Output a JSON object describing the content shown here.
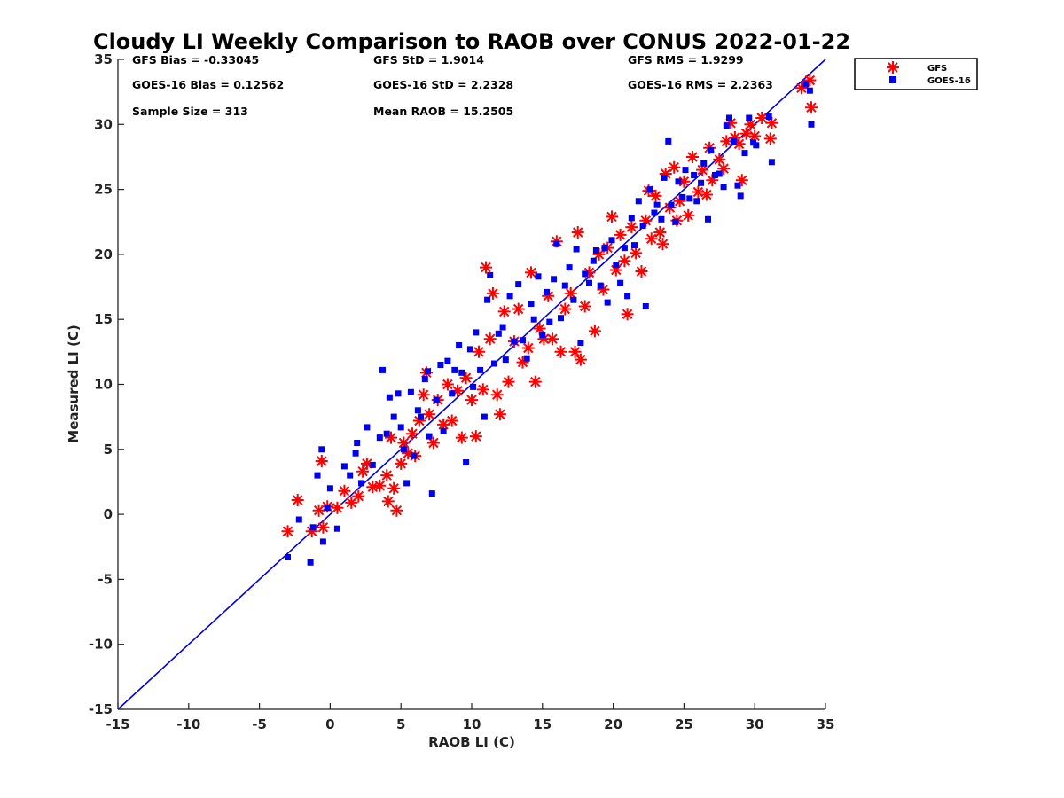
{
  "chart_data": {
    "type": "scatter",
    "title": "Cloudy LI Weekly Comparison to RAOB over CONUS 2022-01-22",
    "xlabel": "RAOB LI (C)",
    "ylabel": "Measured LI (C)",
    "xlim": [
      -15,
      35
    ],
    "ylim": [
      -15,
      35
    ],
    "xticks": [
      "-15",
      "-10",
      "-5",
      "0",
      "5",
      "10",
      "15",
      "20",
      "25",
      "30",
      "35"
    ],
    "yticks": [
      "-15",
      "-10",
      "-5",
      "0",
      "5",
      "10",
      "15",
      "20",
      "25",
      "30",
      "35"
    ],
    "grid": false,
    "legend_position": "outside-top-right",
    "reference_line": {
      "x": [
        -15,
        35
      ],
      "y": [
        -15,
        35
      ],
      "color": "#0000dd"
    },
    "stats": [
      [
        "GFS Bias = -0.33045",
        "GFS StD = 1.9014",
        "GFS RMS = 1.9299"
      ],
      [
        "GOES-16 Bias = 0.12562",
        "GOES-16 StD = 2.2328",
        "GOES-16 RMS = 2.2363"
      ],
      [
        "Sample Size = 313",
        "Mean RAOB = 15.2505"
      ]
    ],
    "series": [
      {
        "name": "GFS",
        "marker": "asterisk",
        "color": "#ff0000",
        "points": [
          [
            -3,
            -1.3
          ],
          [
            -2.3,
            1.1
          ],
          [
            -1.3,
            -1.3
          ],
          [
            -0.8,
            0.3
          ],
          [
            -0.6,
            4.1
          ],
          [
            -0.5,
            -1
          ],
          [
            -0.2,
            0.6
          ],
          [
            0.5,
            0.5
          ],
          [
            1,
            1.8
          ],
          [
            1.5,
            0.9
          ],
          [
            2,
            1.4
          ],
          [
            2.3,
            3.3
          ],
          [
            2.6,
            3.9
          ],
          [
            3,
            2.1
          ],
          [
            3.5,
            2.2
          ],
          [
            4,
            3
          ],
          [
            4.1,
            1
          ],
          [
            4.3,
            5.9
          ],
          [
            4.5,
            2
          ],
          [
            4.7,
            0.3
          ],
          [
            5,
            3.9
          ],
          [
            5.2,
            5.5
          ],
          [
            5.5,
            4.7
          ],
          [
            5.8,
            6.2
          ],
          [
            6,
            4.5
          ],
          [
            6.3,
            7.2
          ],
          [
            6.6,
            9.2
          ],
          [
            6.8,
            10.9
          ],
          [
            7,
            7.7
          ],
          [
            7.3,
            5.5
          ],
          [
            7.6,
            8.8
          ],
          [
            8,
            6.9
          ],
          [
            8.3,
            10
          ],
          [
            8.6,
            7.2
          ],
          [
            9,
            9.5
          ],
          [
            9.3,
            5.9
          ],
          [
            9.6,
            10.5
          ],
          [
            10,
            8.8
          ],
          [
            10.3,
            6
          ],
          [
            10.5,
            12.5
          ],
          [
            10.8,
            9.6
          ],
          [
            11,
            19
          ],
          [
            11.3,
            13.5
          ],
          [
            11.5,
            17
          ],
          [
            11.8,
            9.2
          ],
          [
            12,
            7.7
          ],
          [
            12.3,
            15.6
          ],
          [
            12.6,
            10.2
          ],
          [
            13,
            13.3
          ],
          [
            13.3,
            15.8
          ],
          [
            13.6,
            11.7
          ],
          [
            14,
            12.8
          ],
          [
            14.2,
            18.6
          ],
          [
            14.5,
            10.2
          ],
          [
            14.8,
            14.3
          ],
          [
            15.1,
            13.5
          ],
          [
            15.4,
            16.8
          ],
          [
            15.7,
            13.5
          ],
          [
            16,
            21
          ],
          [
            16.3,
            12.5
          ],
          [
            16.6,
            15.8
          ],
          [
            17,
            17
          ],
          [
            17.3,
            12.5
          ],
          [
            17.5,
            21.7
          ],
          [
            17.7,
            11.9
          ],
          [
            18,
            16
          ],
          [
            18.3,
            18.6
          ],
          [
            18.7,
            14.1
          ],
          [
            19,
            20
          ],
          [
            19.3,
            17.3
          ],
          [
            19.6,
            20.5
          ],
          [
            19.9,
            22.9
          ],
          [
            20.2,
            18.8
          ],
          [
            20.5,
            21.5
          ],
          [
            20.8,
            19.5
          ],
          [
            21,
            15.4
          ],
          [
            21.3,
            22.1
          ],
          [
            21.6,
            20.1
          ],
          [
            22,
            18.7
          ],
          [
            22.3,
            22.6
          ],
          [
            22.5,
            24.9
          ],
          [
            22.7,
            21.2
          ],
          [
            23,
            24.5
          ],
          [
            23.3,
            21.7
          ],
          [
            23.5,
            20.8
          ],
          [
            23.7,
            26.2
          ],
          [
            24,
            23.6
          ],
          [
            24.3,
            26.7
          ],
          [
            24.5,
            22.6
          ],
          [
            24.7,
            24.1
          ],
          [
            25,
            25.6
          ],
          [
            25.3,
            23
          ],
          [
            25.6,
            27.5
          ],
          [
            26,
            24.8
          ],
          [
            26.3,
            26.5
          ],
          [
            26.6,
            24.6
          ],
          [
            26.8,
            28.2
          ],
          [
            27,
            25.7
          ],
          [
            27.5,
            27.3
          ],
          [
            27.8,
            26.6
          ],
          [
            28,
            28.7
          ],
          [
            28.3,
            30.1
          ],
          [
            28.6,
            29
          ],
          [
            28.9,
            28.5
          ],
          [
            29.1,
            25.7
          ],
          [
            29.4,
            29.3
          ],
          [
            29.7,
            30
          ],
          [
            30,
            29.1
          ],
          [
            30.5,
            30.5
          ],
          [
            31.1,
            28.9
          ],
          [
            31.2,
            30.1
          ],
          [
            33.3,
            32.8
          ],
          [
            33.9,
            33.4
          ],
          [
            34,
            31.3
          ]
        ]
      },
      {
        "name": "GOES-16",
        "marker": "square",
        "color": "#0000ee",
        "points": [
          [
            -3,
            -3.3
          ],
          [
            -2.2,
            -0.4
          ],
          [
            -1.4,
            -3.7
          ],
          [
            -1.2,
            -1
          ],
          [
            -0.9,
            3
          ],
          [
            -0.6,
            5
          ],
          [
            -0.5,
            -2.1
          ],
          [
            -0.2,
            0.5
          ],
          [
            0,
            2
          ],
          [
            0.5,
            -1.1
          ],
          [
            1,
            3.7
          ],
          [
            1.4,
            3
          ],
          [
            1.8,
            4.7
          ],
          [
            1.9,
            5.5
          ],
          [
            2.2,
            2.4
          ],
          [
            2.6,
            6.7
          ],
          [
            3,
            3.8
          ],
          [
            3.5,
            5.9
          ],
          [
            3.7,
            11.1
          ],
          [
            4,
            6.2
          ],
          [
            4.2,
            9
          ],
          [
            4.5,
            7.5
          ],
          [
            4.8,
            9.3
          ],
          [
            5,
            6.7
          ],
          [
            5.2,
            5
          ],
          [
            5.4,
            2.4
          ],
          [
            5.7,
            9.4
          ],
          [
            5.9,
            4.5
          ],
          [
            6.2,
            8
          ],
          [
            6.4,
            7.5
          ],
          [
            6.7,
            10.4
          ],
          [
            6.9,
            11
          ],
          [
            7,
            6
          ],
          [
            7.2,
            1.6
          ],
          [
            7.5,
            8.8
          ],
          [
            7.8,
            11.5
          ],
          [
            8,
            6.4
          ],
          [
            8.3,
            11.8
          ],
          [
            8.6,
            9.3
          ],
          [
            8.8,
            11.1
          ],
          [
            9.1,
            13
          ],
          [
            9.3,
            10.9
          ],
          [
            9.6,
            4
          ],
          [
            9.9,
            12.7
          ],
          [
            10.1,
            9.8
          ],
          [
            10.3,
            14
          ],
          [
            10.6,
            11.1
          ],
          [
            10.9,
            7.5
          ],
          [
            11.1,
            16.5
          ],
          [
            11.3,
            18.4
          ],
          [
            11.6,
            11.6
          ],
          [
            11.9,
            13.9
          ],
          [
            12.2,
            14.4
          ],
          [
            12.4,
            11.9
          ],
          [
            12.7,
            16.8
          ],
          [
            13,
            13.3
          ],
          [
            13.3,
            17.7
          ],
          [
            13.6,
            13.4
          ],
          [
            13.9,
            12
          ],
          [
            14.2,
            16.2
          ],
          [
            14.4,
            15
          ],
          [
            14.7,
            18.3
          ],
          [
            15,
            13.8
          ],
          [
            15.3,
            17.1
          ],
          [
            15.5,
            14.8
          ],
          [
            15.8,
            18.1
          ],
          [
            16,
            20.8
          ],
          [
            16.3,
            15.1
          ],
          [
            16.6,
            17.6
          ],
          [
            16.9,
            19
          ],
          [
            17.2,
            16.5
          ],
          [
            17.4,
            20.4
          ],
          [
            17.7,
            13.2
          ],
          [
            18,
            18.5
          ],
          [
            18.3,
            17.8
          ],
          [
            18.6,
            19.5
          ],
          [
            18.8,
            20.3
          ],
          [
            19.1,
            17.6
          ],
          [
            19.4,
            20.5
          ],
          [
            19.6,
            16.3
          ],
          [
            19.9,
            21.1
          ],
          [
            20.2,
            19.2
          ],
          [
            20.5,
            17.8
          ],
          [
            20.8,
            20.5
          ],
          [
            21,
            16.8
          ],
          [
            21.3,
            22.8
          ],
          [
            21.5,
            20.7
          ],
          [
            21.8,
            24.1
          ],
          [
            22.1,
            22.2
          ],
          [
            22.3,
            16
          ],
          [
            22.6,
            25
          ],
          [
            22.9,
            23.2
          ],
          [
            23.1,
            23.8
          ],
          [
            23.4,
            22.7
          ],
          [
            23.6,
            25.9
          ],
          [
            23.9,
            28.7
          ],
          [
            24.1,
            23.8
          ],
          [
            24.4,
            22.5
          ],
          [
            24.6,
            25.6
          ],
          [
            24.9,
            24.4
          ],
          [
            25.1,
            26.5
          ],
          [
            25.4,
            24.3
          ],
          [
            25.7,
            26.1
          ],
          [
            25.9,
            24.1
          ],
          [
            26.2,
            25.5
          ],
          [
            26.4,
            27
          ],
          [
            26.7,
            22.7
          ],
          [
            26.9,
            28
          ],
          [
            27.2,
            26.1
          ],
          [
            27.5,
            26.2
          ],
          [
            27.8,
            25.2
          ],
          [
            28,
            29.9
          ],
          [
            28.2,
            30.5
          ],
          [
            28.5,
            28.7
          ],
          [
            28.8,
            25.3
          ],
          [
            29,
            24.5
          ],
          [
            29.3,
            27.8
          ],
          [
            29.6,
            30.5
          ],
          [
            29.9,
            28.6
          ],
          [
            30.1,
            28.4
          ],
          [
            31,
            30.6
          ],
          [
            31.2,
            27.1
          ],
          [
            33.6,
            33.1
          ],
          [
            33.9,
            32.6
          ],
          [
            34,
            30
          ]
        ]
      }
    ]
  }
}
